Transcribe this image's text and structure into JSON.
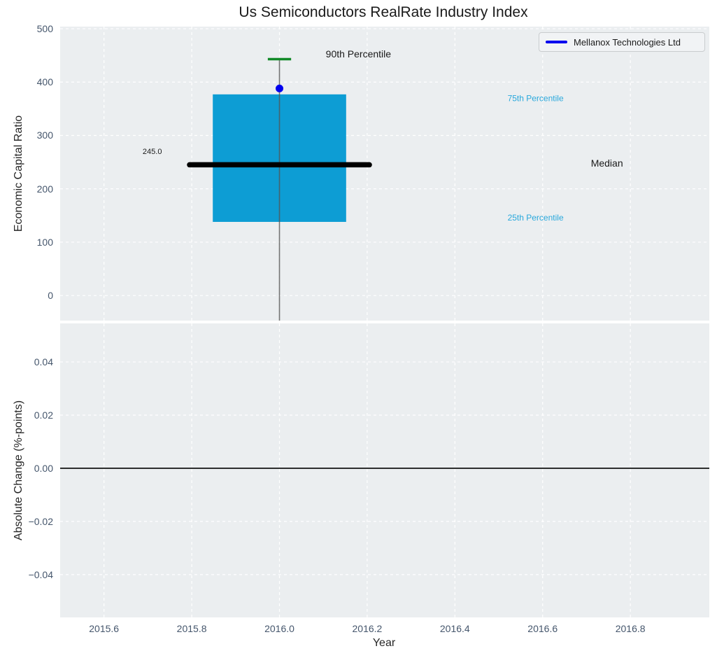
{
  "title": "Us Semiconductors RealRate Industry Index",
  "labels": {
    "ylabel_top": "Economic Capital Ratio",
    "ylabel_bottom": "Absolute Change (%-points)",
    "xlabel": "Year"
  },
  "legend": {
    "label": "Mellanox Technologies Ltd",
    "line_color": "#0000ee",
    "position": "upper right"
  },
  "style": {
    "figure_bg": "#ffffff",
    "axes_bg": "#ebeef0",
    "grid_color": "#ffffff",
    "tick_color": "#45566c",
    "label_color": "#262626",
    "title_color": "#1a1a1a",
    "box_fill": "#0d9dd4",
    "median_color": "#000000",
    "cap_color": "#128a28",
    "whisker_color": "#555555",
    "point_color": "#0000ee",
    "zero_line_color": "#000000",
    "annotation_cyan": "#29a8dc",
    "annotation_black": "#1a1a1a",
    "legend_bg": "#f1f3f5",
    "legend_border": "#c9ccce"
  },
  "chart_data": [
    {
      "type": "box",
      "title": "Us Semiconductors RealRate Industry Index",
      "xlabel": "Year",
      "ylabel": "Economic Capital Ratio",
      "xlim": [
        2015.5,
        2016.98
      ],
      "ylim": [
        -47,
        504
      ],
      "grid": true,
      "xticks": [
        {
          "v": 2015.6,
          "label": "2015.6"
        },
        {
          "v": 2015.8,
          "label": "2015.8"
        },
        {
          "v": 2016.0,
          "label": "2016.0"
        },
        {
          "v": 2016.2,
          "label": "2016.2"
        },
        {
          "v": 2016.4,
          "label": "2016.4"
        },
        {
          "v": 2016.6,
          "label": "2016.6"
        },
        {
          "v": 2016.8,
          "label": "2016.8"
        }
      ],
      "yticks": [
        {
          "v": 0,
          "label": "0"
        },
        {
          "v": 100,
          "label": "100"
        },
        {
          "v": 200,
          "label": "200"
        },
        {
          "v": 300,
          "label": "300"
        },
        {
          "v": 400,
          "label": "400"
        },
        {
          "v": 500,
          "label": "500"
        }
      ],
      "box": {
        "x": 2016.0,
        "median": 245.0,
        "q1": 138,
        "q3": 377,
        "p90": 443,
        "whisker_low": -47,
        "whisker_low_clipped": true,
        "box_halfwidth": 0.152,
        "median_halfwidth": 0.205,
        "cap_halfwidth": 0.017
      },
      "point": {
        "label": "Mellanox Technologies Ltd",
        "x": 2016.0,
        "y": 388
      },
      "annotations": [
        {
          "text": "90th Percentile",
          "x": 2016.18,
          "y": 453,
          "size": 14,
          "anchor": "middle",
          "color_key": "annotation_black"
        },
        {
          "text": "75th Percentile",
          "x": 2016.52,
          "y": 370,
          "size": 12,
          "anchor": "start",
          "color_key": "annotation_cyan"
        },
        {
          "text": "Median",
          "x": 2016.71,
          "y": 248,
          "size": 14,
          "anchor": "start",
          "color_key": "annotation_black"
        },
        {
          "text": "25th Percentile",
          "x": 2016.52,
          "y": 146,
          "size": 12,
          "anchor": "start",
          "color_key": "annotation_cyan"
        },
        {
          "text": "245.0",
          "x": 2015.71,
          "y": 270,
          "size": 11,
          "anchor": "middle",
          "color_key": "annotation_black"
        }
      ]
    },
    {
      "type": "line",
      "xlabel": "Year",
      "ylabel": "Absolute Change (%-points)",
      "xlim": [
        2015.5,
        2016.98
      ],
      "ylim": [
        -0.0561,
        0.0545
      ],
      "grid": true,
      "yticks": [
        {
          "v": -0.04,
          "label": "−0.04"
        },
        {
          "v": -0.02,
          "label": "−0.02"
        },
        {
          "v": 0.0,
          "label": "0.00"
        },
        {
          "v": 0.02,
          "label": "0.02"
        },
        {
          "v": 0.04,
          "label": "0.04"
        }
      ],
      "zero_line": 0.0,
      "series": []
    }
  ]
}
